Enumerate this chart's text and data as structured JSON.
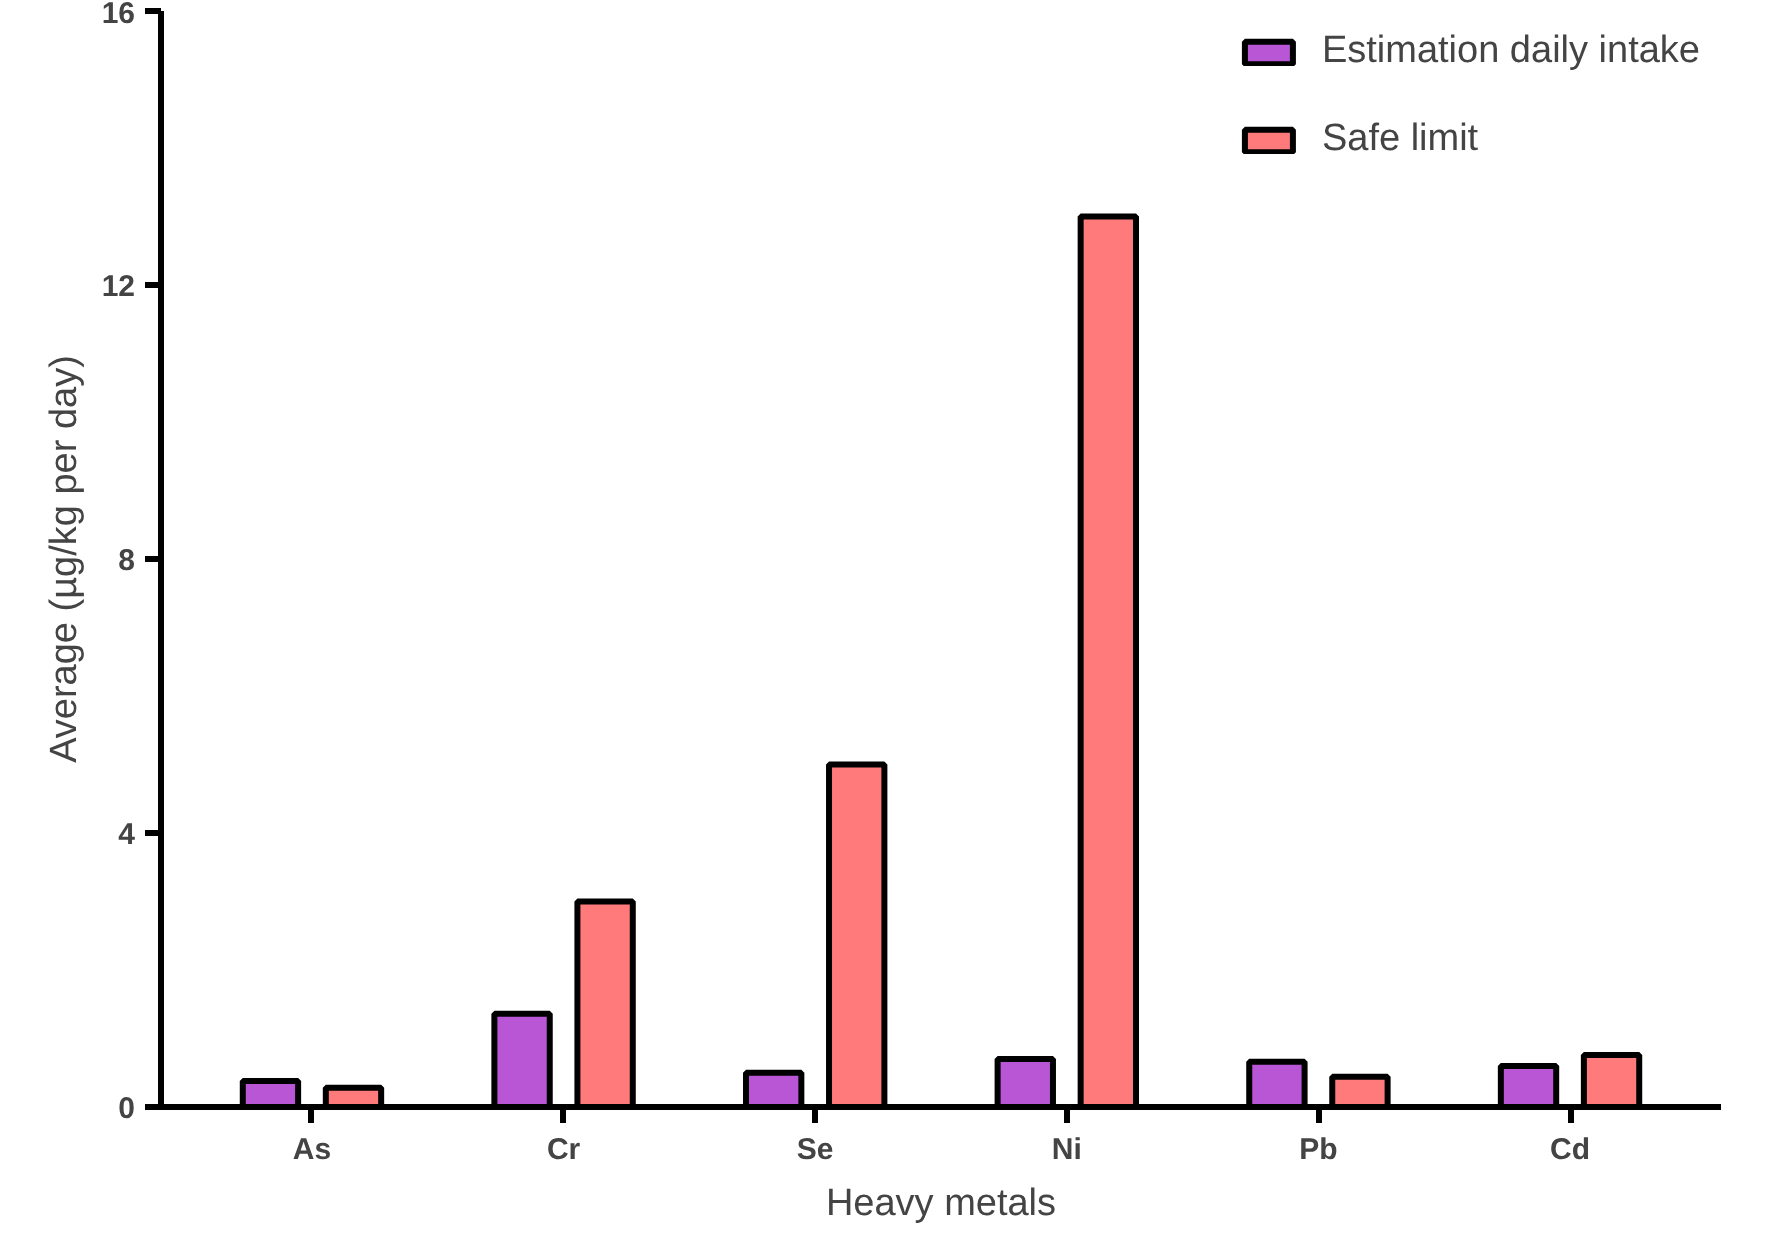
{
  "chart_data": {
    "type": "bar",
    "xlabel": "Heavy metals",
    "ylabel": "Average (µg/kg per day)",
    "categories": [
      "As",
      "Cr",
      "Se",
      "Ni",
      "Pb",
      "Cd"
    ],
    "series": [
      {
        "name": "Estimation daily intake",
        "color": "#b956d6",
        "values": [
          0.38,
          1.36,
          0.5,
          0.7,
          0.66,
          0.6
        ]
      },
      {
        "name": "Safe limit",
        "color": "#ff7b7b",
        "values": [
          0.28,
          3,
          5,
          13,
          0.44,
          0.76
        ]
      }
    ],
    "ylim": [
      0,
      16
    ],
    "yticks": [
      0,
      4,
      8,
      12,
      16
    ],
    "grid": false,
    "legend": "top right"
  }
}
